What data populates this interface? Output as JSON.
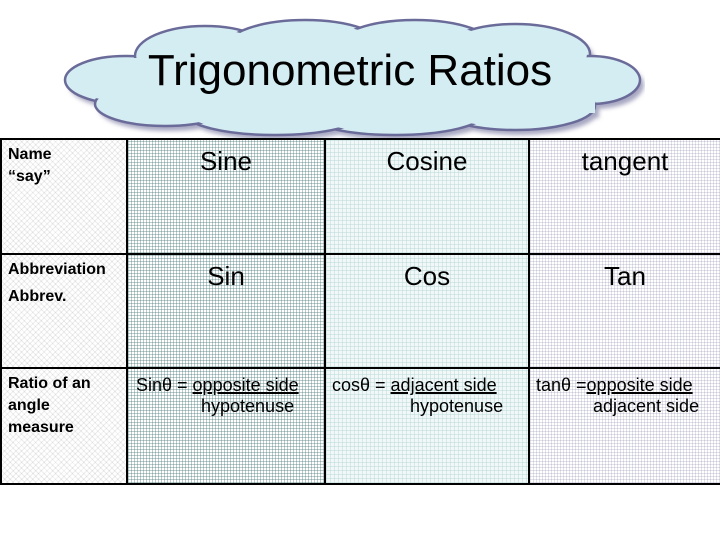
{
  "title": "Trigonometric Ratios",
  "rows": {
    "name": {
      "header_line1": "Name",
      "header_line2": "“say”",
      "sine": "Sine",
      "cosine": "Cosine",
      "tangent": "tangent"
    },
    "abbreviation": {
      "header_line1": "Abbreviation",
      "header_line2": "Abbrev.",
      "sine": "Sin",
      "cosine": "Cos",
      "tangent": "Tan"
    },
    "ratio": {
      "header_line1": "Ratio of an",
      "header_line2": "angle",
      "header_line3": "measure",
      "sine": {
        "lhs": "Sinθ = ",
        "numerator": "opposite side",
        "denominator": "hypotenuse"
      },
      "cosine": {
        "lhs": "cosθ = ",
        "numerator": "adjacent side",
        "denominator": "hypotenuse"
      },
      "tangent": {
        "lhs": "tanθ =",
        "numerator": "opposite side",
        "denominator": "adjacent side"
      }
    }
  },
  "colors": {
    "cloud_fill": "#d4edf2",
    "cloud_outline": "#6b6b9a",
    "cloud_shadow": "#a7a7c2"
  }
}
